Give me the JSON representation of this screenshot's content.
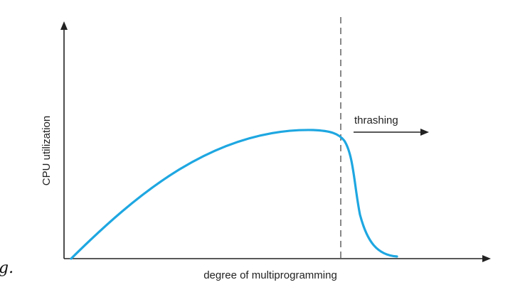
{
  "diagram": {
    "y_axis_label": "CPU utilization",
    "x_axis_label": "degree of multiprogramming",
    "region_label": "thrashing",
    "curve_color": "#1ea7e1",
    "line_color": "#222222",
    "stray_text": "g."
  }
}
